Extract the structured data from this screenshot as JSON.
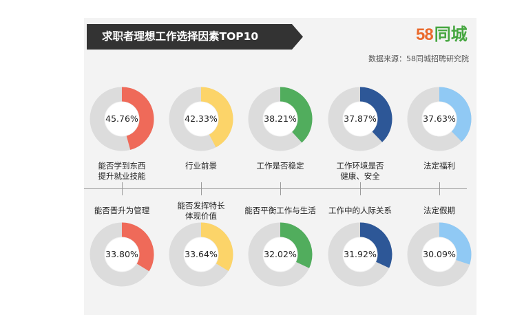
{
  "header": {
    "title": "求职者理想工作选择因素TOP10",
    "logo_number": "58",
    "logo_text": "同城",
    "source": "数据来源：58同城招聘研究院"
  },
  "colors": {
    "track": "#dcdcdc",
    "red": "#ef6a59",
    "yellow": "#fcd469",
    "green": "#51ad5d",
    "navy": "#2d5797",
    "lightblue": "#90c9f4"
  },
  "chart_data": {
    "type": "donut",
    "unit": "%",
    "max": 100,
    "items": [
      {
        "category": "能否学到东西\n提升就业技能",
        "value": 45.76,
        "label": "45.76%",
        "color": "#ef6a59"
      },
      {
        "category": "行业前景",
        "value": 42.33,
        "label": "42.33%",
        "color": "#fcd469"
      },
      {
        "category": "工作是否稳定",
        "value": 38.21,
        "label": "38.21%",
        "color": "#51ad5d"
      },
      {
        "category": "工作环境是否\n健康、安全",
        "value": 37.87,
        "label": "37.87%",
        "color": "#2d5797"
      },
      {
        "category": "法定福利",
        "value": 37.63,
        "label": "37.63%",
        "color": "#90c9f4"
      },
      {
        "category": "能否晋升为管理",
        "value": 33.8,
        "label": "33.80%",
        "color": "#ef6a59"
      },
      {
        "category": "能否发挥特长\n体现价值",
        "value": 33.64,
        "label": "33.64%",
        "color": "#fcd469"
      },
      {
        "category": "能否平衡工作与生活",
        "value": 32.02,
        "label": "32.02%",
        "color": "#51ad5d"
      },
      {
        "category": "工作中的人际关系",
        "value": 31.92,
        "label": "31.92%",
        "color": "#2d5797"
      },
      {
        "category": "法定假期",
        "value": 30.09,
        "label": "30.09%",
        "color": "#90c9f4"
      }
    ]
  }
}
